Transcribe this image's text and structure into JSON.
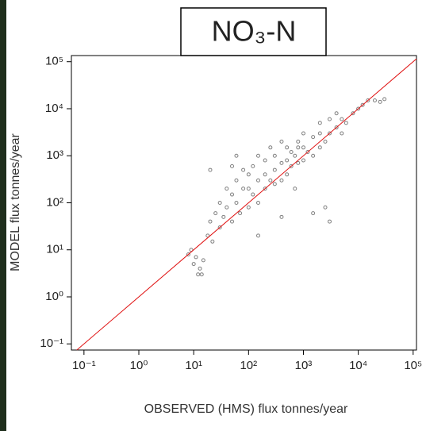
{
  "chart_data": {
    "type": "scatter",
    "title": "NO₃-N",
    "xlabel": "OBSERVED (HMS) flux tonnes/year",
    "ylabel": "MODEL flux tonnes/year",
    "xscale": "log",
    "yscale": "log",
    "xlim": [
      0.059,
      115000
    ],
    "ylim": [
      0.074,
      135000
    ],
    "xticks": [
      {
        "value": 0.1,
        "label": "10⁻¹"
      },
      {
        "value": 1,
        "label": "10⁰"
      },
      {
        "value": 10,
        "label": "10¹"
      },
      {
        "value": 100,
        "label": "10²"
      },
      {
        "value": 1000,
        "label": "10³"
      },
      {
        "value": 10000,
        "label": "10⁴"
      },
      {
        "value": 100000,
        "label": "10⁵"
      }
    ],
    "yticks": [
      {
        "value": 0.1,
        "label": "10⁻¹"
      },
      {
        "value": 1,
        "label": "10⁰"
      },
      {
        "value": 10,
        "label": "10¹"
      },
      {
        "value": 100,
        "label": "10²"
      },
      {
        "value": 1000,
        "label": "10³"
      },
      {
        "value": 10000,
        "label": "10⁴"
      },
      {
        "value": 100000,
        "label": "10⁵"
      }
    ],
    "identity_line": true,
    "identity_color": "#e01010",
    "series": [
      {
        "color": "#808080",
        "x": [
          8,
          10,
          12,
          11,
          13,
          15,
          9,
          14,
          18,
          20,
          22,
          25,
          30,
          30,
          35,
          40,
          40,
          50,
          50,
          60,
          60,
          70,
          80,
          80,
          100,
          100,
          100,
          120,
          120,
          150,
          150,
          150,
          200,
          200,
          200,
          250,
          250,
          300,
          300,
          300,
          400,
          400,
          400,
          500,
          500,
          500,
          600,
          600,
          700,
          800,
          800,
          1000,
          1000,
          1000,
          1200,
          1500,
          1500,
          2000,
          2000,
          2000,
          2500,
          3000,
          3000,
          4000,
          4000,
          5000,
          6000,
          8000,
          10000,
          12000,
          15000,
          20000,
          25000,
          30000,
          1500,
          2500,
          3000,
          400,
          150,
          20,
          50,
          800,
          5000,
          700,
          60
        ],
        "values": [
          8,
          5,
          3,
          7,
          4,
          6,
          10,
          3,
          20,
          40,
          15,
          60,
          30,
          100,
          50,
          80,
          200,
          40,
          150,
          100,
          300,
          60,
          200,
          500,
          80,
          200,
          400,
          150,
          600,
          100,
          300,
          1000,
          200,
          400,
          800,
          300,
          1500,
          250,
          500,
          1000,
          300,
          700,
          2000,
          400,
          800,
          1500,
          600,
          1200,
          1000,
          700,
          2000,
          800,
          1500,
          3000,
          1200,
          1000,
          2500,
          1500,
          3000,
          5000,
          2000,
          3000,
          6000,
          4000,
          8000,
          6000,
          5000,
          8000,
          10000,
          12000,
          15000,
          15000,
          14000,
          16000,
          60,
          80,
          40,
          50,
          20,
          500,
          600,
          1500,
          3000,
          200,
          1000
        ]
      }
    ]
  }
}
